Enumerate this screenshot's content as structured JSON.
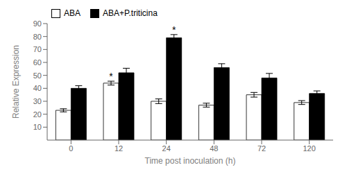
{
  "chart_data": {
    "type": "bar",
    "categories": [
      "0",
      "12",
      "24",
      "48",
      "72",
      "120"
    ],
    "series": [
      {
        "name": "ABA",
        "color": "white",
        "values": [
          23,
          44,
          30,
          27,
          35,
          29
        ],
        "errors": [
          1.2,
          1.5,
          1.8,
          1.5,
          1.8,
          1.5
        ],
        "annotations": [
          null,
          "*",
          null,
          null,
          null,
          null
        ]
      },
      {
        "name": "ABA+P.triticina",
        "color": "black",
        "values": [
          40,
          52,
          79,
          56,
          48,
          36
        ],
        "errors": [
          2.0,
          3.5,
          2.5,
          3.0,
          3.5,
          2.0
        ],
        "annotations": [
          null,
          null,
          "*",
          null,
          null,
          null
        ]
      }
    ],
    "xlabel": "Time post inoculation (h)",
    "ylabel": "Relative Expression",
    "ylim": [
      0,
      90
    ],
    "yticks": [
      10,
      20,
      30,
      40,
      50,
      60,
      70,
      80,
      90
    ],
    "grid": false,
    "legend": "upper left"
  }
}
